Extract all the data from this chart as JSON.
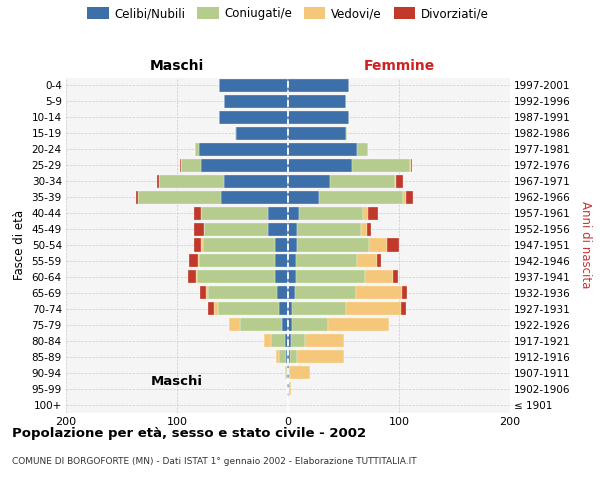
{
  "age_groups": [
    "100+",
    "95-99",
    "90-94",
    "85-89",
    "80-84",
    "75-79",
    "70-74",
    "65-69",
    "60-64",
    "55-59",
    "50-54",
    "45-49",
    "40-44",
    "35-39",
    "30-34",
    "25-29",
    "20-24",
    "15-19",
    "10-14",
    "5-9",
    "0-4"
  ],
  "birth_years": [
    "≤ 1901",
    "1902-1906",
    "1907-1911",
    "1912-1916",
    "1917-1921",
    "1922-1926",
    "1927-1931",
    "1932-1936",
    "1937-1941",
    "1942-1946",
    "1947-1951",
    "1952-1956",
    "1957-1961",
    "1962-1966",
    "1967-1971",
    "1972-1976",
    "1977-1981",
    "1982-1986",
    "1987-1991",
    "1992-1996",
    "1997-2001"
  ],
  "maschi": {
    "celibi": [
      0,
      1,
      1,
      2,
      3,
      5,
      8,
      10,
      12,
      12,
      12,
      18,
      18,
      60,
      58,
      78,
      80,
      47,
      62,
      58,
      62
    ],
    "coniugati": [
      0,
      0,
      1,
      6,
      12,
      38,
      55,
      62,
      70,
      68,
      65,
      58,
      60,
      75,
      58,
      18,
      4,
      1,
      0,
      0,
      0
    ],
    "vedovi": [
      0,
      0,
      1,
      3,
      7,
      10,
      4,
      2,
      1,
      1,
      1,
      0,
      0,
      0,
      0,
      0,
      0,
      0,
      0,
      0,
      0
    ],
    "divorziati": [
      0,
      0,
      0,
      0,
      0,
      0,
      5,
      5,
      7,
      8,
      7,
      9,
      7,
      2,
      2,
      1,
      0,
      0,
      0,
      0,
      0
    ]
  },
  "femmine": {
    "nubili": [
      0,
      1,
      1,
      2,
      3,
      4,
      4,
      6,
      7,
      7,
      8,
      8,
      10,
      28,
      38,
      58,
      62,
      52,
      55,
      52,
      55
    ],
    "coniugate": [
      0,
      0,
      1,
      6,
      12,
      32,
      48,
      55,
      62,
      55,
      65,
      58,
      58,
      76,
      58,
      52,
      10,
      1,
      0,
      0,
      0
    ],
    "vedove": [
      0,
      2,
      18,
      42,
      35,
      55,
      50,
      42,
      26,
      18,
      16,
      5,
      4,
      2,
      1,
      1,
      0,
      0,
      0,
      0,
      0
    ],
    "divorziate": [
      0,
      0,
      0,
      0,
      0,
      0,
      4,
      4,
      4,
      4,
      11,
      4,
      9,
      7,
      7,
      1,
      0,
      0,
      0,
      0,
      0
    ]
  },
  "colors": {
    "celibi": "#3d6fa8",
    "coniugati": "#b5cc8e",
    "vedovi": "#f5c77a",
    "divorziati": "#c0392b"
  },
  "xlim": 200,
  "title": "Popolazione per età, sesso e stato civile - 2002",
  "subtitle": "COMUNE DI BORGOFORTE (MN) - Dati ISTAT 1° gennaio 2002 - Elaborazione TUTTITALIA.IT",
  "xlabel_left": "Maschi",
  "xlabel_right": "Femmine",
  "ylabel_left": "Fasce di età",
  "ylabel_right": "Anni di nascita",
  "bg_color": "#f5f5f5",
  "grid_color": "#cccccc",
  "legend_labels": [
    "Celibi/Nubili",
    "Coniugati/e",
    "Vedovi/e",
    "Divorziati/e"
  ]
}
